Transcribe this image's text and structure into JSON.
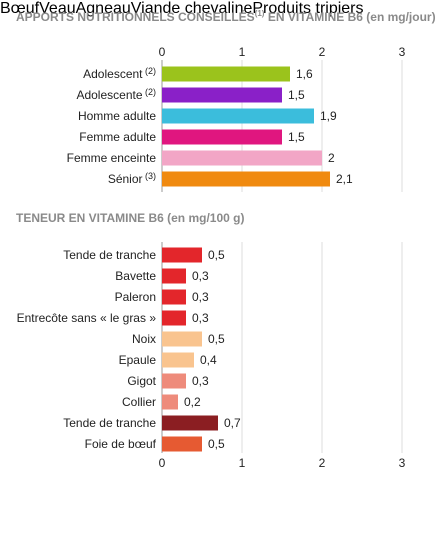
{
  "chart_data": [
    {
      "type": "bar",
      "orientation": "horizontal",
      "title": "APPORTS NUTRITIONNELS CONSEILLÉS",
      "title_note": "(1)",
      "title_suffix": "EN VITAMINE B6 (en mg/jour)",
      "categories": [
        "Adolescent",
        "Adolescente",
        "Homme adulte",
        "Femme adulte",
        "Femme enceinte",
        "Sénior"
      ],
      "category_notes": [
        "(2)",
        "(2)",
        "",
        "",
        "",
        "(3)"
      ],
      "values": [
        1.6,
        1.5,
        1.9,
        1.5,
        2,
        2.1
      ],
      "value_labels": [
        "1,6",
        "1,5",
        "1,9",
        "1,5",
        "2",
        "2,1"
      ],
      "colors": [
        "#9bc31c",
        "#8a20c8",
        "#3bbddc",
        "#e0167f",
        "#f2a6c6",
        "#f08a10"
      ],
      "xlim": [
        0,
        3
      ],
      "xticks": [
        "0",
        "1",
        "2",
        "3"
      ],
      "grid": true,
      "axis_position": "top"
    },
    {
      "type": "bar",
      "orientation": "horizontal",
      "title": "TENEUR EN VITAMINE B6 (en mg/100 g)",
      "categories": [
        "Tende de tranche",
        "Bavette",
        "Paleron",
        "Entrecôte sans « le gras »",
        "Noix",
        "Epaule",
        "Gigot",
        "Collier",
        "Tende de tranche",
        "Foie de bœuf"
      ],
      "values": [
        0.5,
        0.3,
        0.3,
        0.3,
        0.5,
        0.4,
        0.3,
        0.2,
        0.7,
        0.5
      ],
      "value_labels": [
        "0,5",
        "0,3",
        "0,3",
        "0,3",
        "0,5",
        "0,4",
        "0,3",
        "0,2",
        "0,7",
        "0,5"
      ],
      "groups": [
        "Bœuf",
        "Bœuf",
        "Bœuf",
        "Bœuf",
        "Veau",
        "Veau",
        "Agneau",
        "Agneau",
        "Viande chevaline",
        "Produits tripiers"
      ],
      "xlim": [
        0,
        3
      ],
      "xticks": [
        "0",
        "1",
        "2",
        "3"
      ],
      "grid": true,
      "axis_position": "bottom",
      "legend": [
        {
          "label": "Bœuf",
          "color": "#e3262b"
        },
        {
          "label": "Veau",
          "color": "#f9c48f"
        },
        {
          "label": "Agneau",
          "color": "#ee8b7b"
        },
        {
          "label": "Viande chevaline",
          "color": "#8b1e22"
        },
        {
          "label": "Produits tripiers",
          "color": "#e65a32"
        }
      ],
      "legend_position": "bottom"
    }
  ]
}
